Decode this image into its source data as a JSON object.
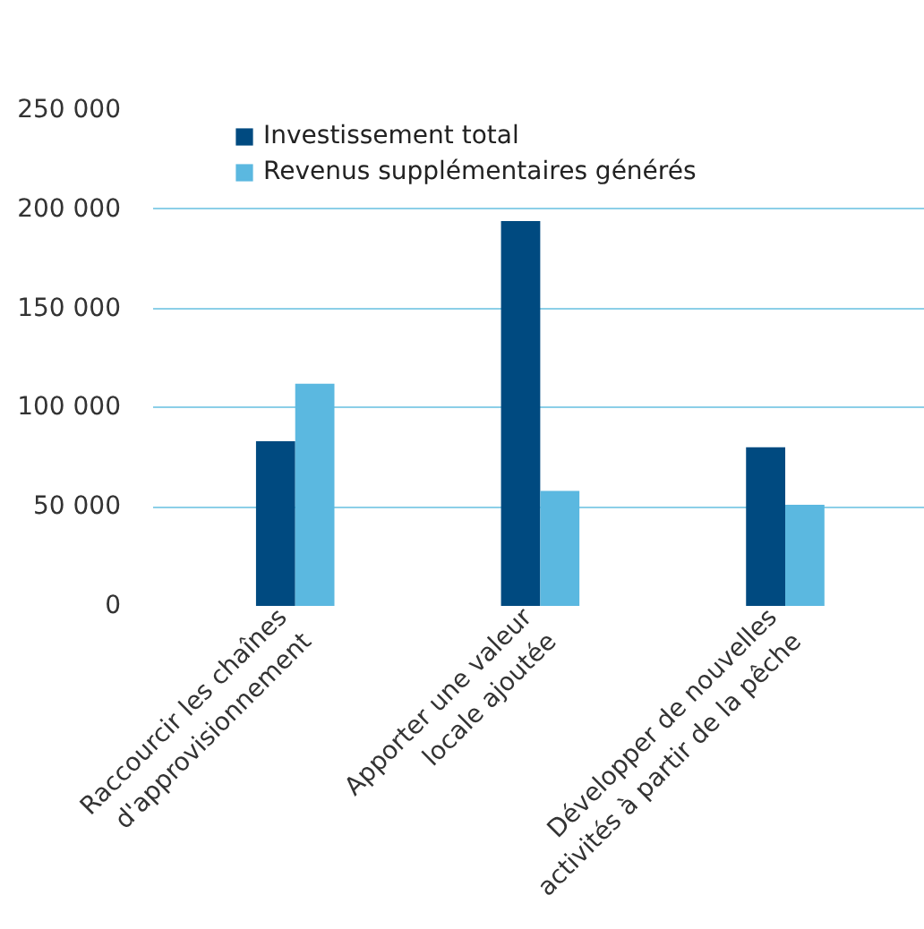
{
  "chart_data": {
    "type": "bar",
    "categories": [
      "Raccourcir les chaînes\nd'approvisionnement",
      "Apporter une valeur\nlocale ajoutée",
      "Développer de nouvelles\nactivités à partir de la pêche"
    ],
    "series": [
      {
        "name": "Investissement total",
        "color": "#004a80",
        "values": [
          83000,
          194000,
          80000
        ]
      },
      {
        "name": "Revenus supplémentaires générés",
        "color": "#5bb8e0",
        "values": [
          112000,
          58000,
          51000
        ]
      }
    ],
    "ylim": [
      0,
      250000
    ],
    "yticks": [
      {
        "value": 0,
        "label": "0"
      },
      {
        "value": 50000,
        "label": "50 000"
      },
      {
        "value": 100000,
        "label": "100 000"
      },
      {
        "value": 150000,
        "label": "150 000"
      },
      {
        "value": 200000,
        "label": "200 000"
      },
      {
        "value": 250000,
        "label": "250 000"
      }
    ],
    "grid": "y",
    "legend": "top left"
  }
}
